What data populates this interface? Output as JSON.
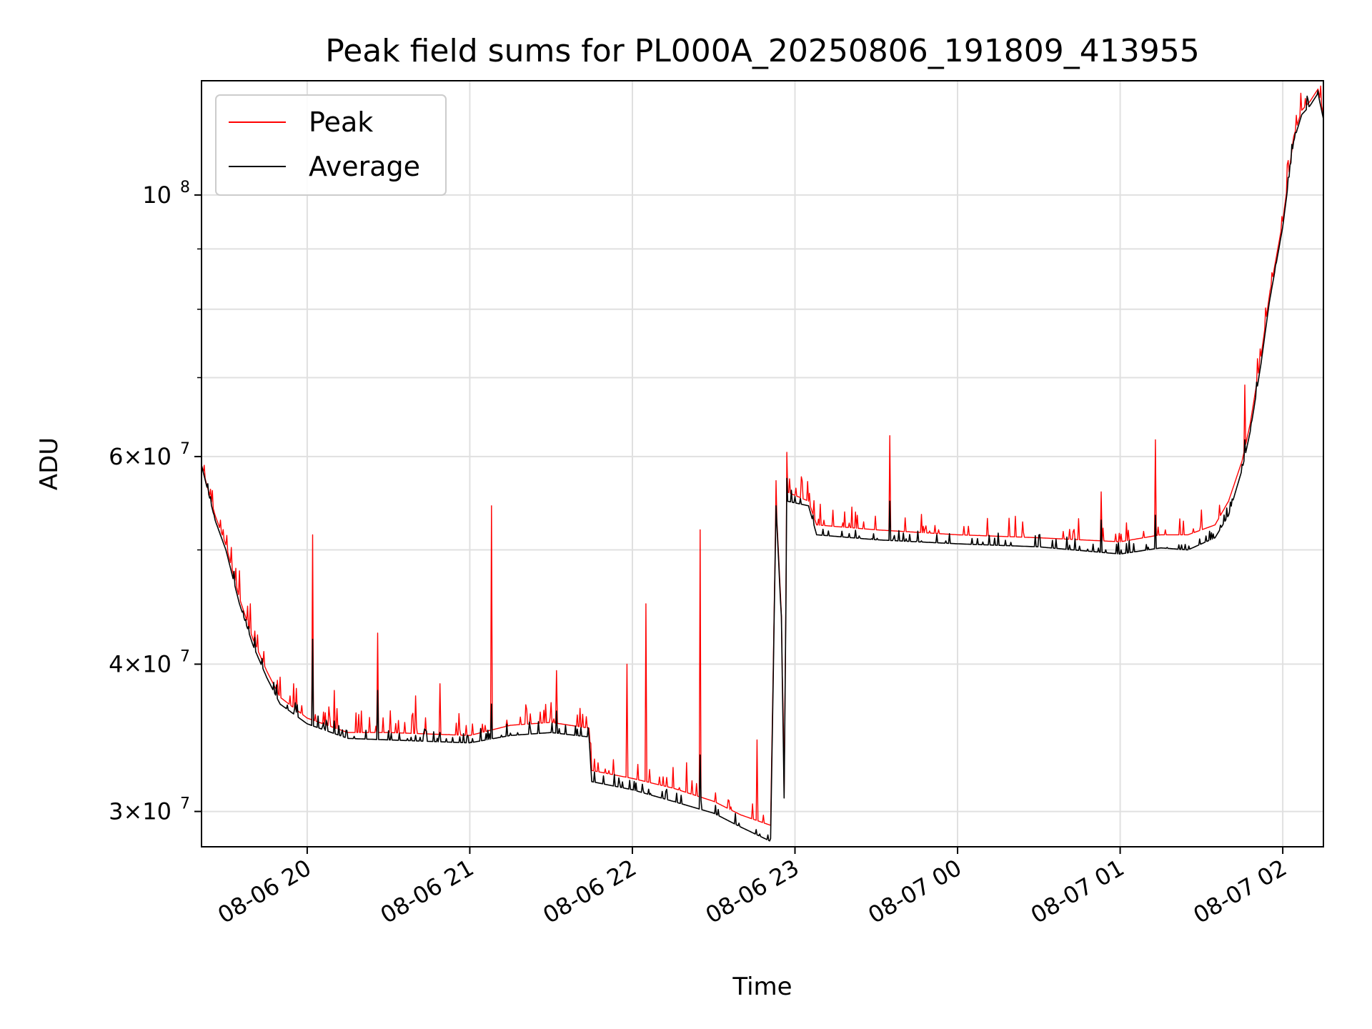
{
  "chart_data": {
    "type": "line",
    "title": "Peak field sums for PL000A_20250806_191809_413955",
    "xlabel": "Time",
    "ylabel": "ADU",
    "x_axis": {
      "kind": "datetime",
      "range": [
        "2025-08-06T19:21:00",
        "2025-08-07T02:15:00"
      ],
      "ticks": [
        {
          "value": "2025-08-06T20:00:00",
          "label": "08-06 20"
        },
        {
          "value": "2025-08-06T21:00:00",
          "label": "08-06 21"
        },
        {
          "value": "2025-08-06T22:00:00",
          "label": "08-06 22"
        },
        {
          "value": "2025-08-06T23:00:00",
          "label": "08-06 23"
        },
        {
          "value": "2025-08-07T00:00:00",
          "label": "08-07 00"
        },
        {
          "value": "2025-08-07T01:00:00",
          "label": "08-07 01"
        },
        {
          "value": "2025-08-07T02:00:00",
          "label": "08-07 02"
        }
      ],
      "tick_label_rotation_deg": 30
    },
    "y_axis": {
      "scale": "log",
      "range": [
        28000000,
        125000000
      ],
      "ticks": [
        {
          "value": 30000000,
          "base": "3",
          "exp": "7"
        },
        {
          "value": 40000000,
          "base": "4",
          "exp": "7"
        },
        {
          "value": 60000000,
          "base": "6",
          "exp": "7"
        },
        {
          "value": 100000000,
          "base": "10",
          "exp": "8"
        }
      ],
      "minor_ticks": [
        50000000,
        70000000,
        80000000,
        90000000
      ]
    },
    "grid": true,
    "legend": {
      "position": "top-left"
    },
    "colors": {
      "peak": "#ff0000",
      "average": "#000000",
      "grid": "#e0e0e0"
    },
    "series": [
      {
        "name": "Peak",
        "color": "#ff0000",
        "baseline": [
          [
            "2025-08-06T19:21:00",
            59000000
          ],
          [
            "2025-08-06T19:26:00",
            53500000
          ],
          [
            "2025-08-06T19:30:00",
            50500000
          ],
          [
            "2025-08-06T19:35:00",
            45500000
          ],
          [
            "2025-08-06T19:40:00",
            42000000
          ],
          [
            "2025-08-06T19:45:00",
            39500000
          ],
          [
            "2025-08-06T19:50:00",
            37500000
          ],
          [
            "2025-08-06T20:00:00",
            36000000
          ],
          [
            "2025-08-06T20:15:00",
            35000000
          ],
          [
            "2025-08-06T20:30:00",
            35000000
          ],
          [
            "2025-08-06T21:00:00",
            34800000
          ],
          [
            "2025-08-06T21:15:00",
            35500000
          ],
          [
            "2025-08-06T21:30:00",
            35700000
          ],
          [
            "2025-08-06T21:44:00",
            35300000
          ],
          [
            "2025-08-06T21:45:00",
            32500000
          ],
          [
            "2025-08-06T22:00:00",
            32000000
          ],
          [
            "2025-08-06T22:15:00",
            31400000
          ],
          [
            "2025-08-06T22:30:00",
            30600000
          ],
          [
            "2025-08-06T22:40:00",
            29800000
          ],
          [
            "2025-08-06T22:51:00",
            29200000
          ],
          [
            "2025-08-06T22:53:00",
            55000000
          ],
          [
            "2025-08-06T22:55:00",
            44000000
          ],
          [
            "2025-08-06T22:56:00",
            31000000
          ],
          [
            "2025-08-06T22:57:00",
            56000000
          ],
          [
            "2025-08-06T23:05:00",
            55000000
          ],
          [
            "2025-08-06T23:08:00",
            52500000
          ],
          [
            "2025-08-06T23:30:00",
            52000000
          ],
          [
            "2025-08-07T00:00:00",
            51500000
          ],
          [
            "2025-08-07T00:30:00",
            51200000
          ],
          [
            "2025-08-07T01:00:00",
            50800000
          ],
          [
            "2025-08-07T01:15:00",
            51500000
          ],
          [
            "2025-08-07T01:25:00",
            51500000
          ],
          [
            "2025-08-07T01:35:00",
            52500000
          ],
          [
            "2025-08-07T01:40:00",
            55000000
          ],
          [
            "2025-08-07T01:45:00",
            59500000
          ],
          [
            "2025-08-07T01:48:00",
            64000000
          ],
          [
            "2025-08-07T01:52:00",
            73000000
          ],
          [
            "2025-08-07T01:55:00",
            82000000
          ],
          [
            "2025-08-07T02:00:00",
            95000000
          ],
          [
            "2025-08-07T02:04:00",
            112000000
          ],
          [
            "2025-08-07T02:07:00",
            118000000
          ],
          [
            "2025-08-07T02:10:00",
            120000000
          ],
          [
            "2025-08-07T02:13:00",
            123000000
          ],
          [
            "2025-08-07T02:15:00",
            117000000
          ]
        ],
        "spikes": [
          [
            "2025-08-06T19:28:00",
            53000000
          ],
          [
            "2025-08-06T19:35:00",
            48000000
          ],
          [
            "2025-08-06T19:39:00",
            45000000
          ],
          [
            "2025-08-06T19:44:00",
            41000000
          ],
          [
            "2025-08-06T19:50:00",
            39000000
          ],
          [
            "2025-08-06T19:55:00",
            38500000
          ],
          [
            "2025-08-06T20:02:00",
            51500000
          ],
          [
            "2025-08-06T20:10:00",
            38000000
          ],
          [
            "2025-08-06T20:20:00",
            36500000
          ],
          [
            "2025-08-06T20:26:00",
            42500000
          ],
          [
            "2025-08-06T20:40:00",
            37600000
          ],
          [
            "2025-08-06T20:49:00",
            38500000
          ],
          [
            "2025-08-06T21:08:00",
            54500000
          ],
          [
            "2025-08-06T21:32:00",
            39500000
          ],
          [
            "2025-08-06T21:58:00",
            40000000
          ],
          [
            "2025-08-06T22:05:00",
            45000000
          ],
          [
            "2025-08-06T22:20:00",
            33000000
          ],
          [
            "2025-08-06T22:25:00",
            52000000
          ],
          [
            "2025-08-06T22:46:00",
            34500000
          ],
          [
            "2025-08-06T22:57:00",
            60500000
          ],
          [
            "2025-08-06T23:35:00",
            62500000
          ],
          [
            "2025-08-07T00:53:00",
            56000000
          ],
          [
            "2025-08-07T01:13:00",
            62000000
          ],
          [
            "2025-08-07T01:46:00",
            69000000
          ]
        ]
      },
      {
        "name": "Average",
        "color": "#000000",
        "baseline": [
          [
            "2025-08-06T19:21:00",
            59000000
          ],
          [
            "2025-08-06T19:26:00",
            53000000
          ],
          [
            "2025-08-06T19:30:00",
            50000000
          ],
          [
            "2025-08-06T19:35:00",
            45000000
          ],
          [
            "2025-08-06T19:40:00",
            41500000
          ],
          [
            "2025-08-06T19:45:00",
            39000000
          ],
          [
            "2025-08-06T19:50:00",
            37000000
          ],
          [
            "2025-08-06T20:00:00",
            35600000
          ],
          [
            "2025-08-06T20:15:00",
            34600000
          ],
          [
            "2025-08-06T20:30:00",
            34500000
          ],
          [
            "2025-08-06T21:00:00",
            34300000
          ],
          [
            "2025-08-06T21:15:00",
            34800000
          ],
          [
            "2025-08-06T21:30:00",
            35000000
          ],
          [
            "2025-08-06T21:44:00",
            34700000
          ],
          [
            "2025-08-06T21:45:00",
            31800000
          ],
          [
            "2025-08-06T22:00:00",
            31300000
          ],
          [
            "2025-08-06T22:15:00",
            30600000
          ],
          [
            "2025-08-06T22:30:00",
            29900000
          ],
          [
            "2025-08-06T22:40:00",
            29100000
          ],
          [
            "2025-08-06T22:51:00",
            28300000
          ],
          [
            "2025-08-06T22:53:00",
            54500000
          ],
          [
            "2025-08-06T22:55:00",
            43500000
          ],
          [
            "2025-08-06T22:56:00",
            30800000
          ],
          [
            "2025-08-06T22:57:00",
            55000000
          ],
          [
            "2025-08-06T23:05:00",
            54500000
          ],
          [
            "2025-08-06T23:08:00",
            51500000
          ],
          [
            "2025-08-06T23:30:00",
            51000000
          ],
          [
            "2025-08-07T00:00:00",
            50600000
          ],
          [
            "2025-08-07T00:30:00",
            50300000
          ],
          [
            "2025-08-07T01:00:00",
            49600000
          ],
          [
            "2025-08-07T01:15:00",
            50200000
          ],
          [
            "2025-08-07T01:25:00",
            50000000
          ],
          [
            "2025-08-07T01:35:00",
            51200000
          ],
          [
            "2025-08-07T01:40:00",
            53500000
          ],
          [
            "2025-08-07T01:45:00",
            58500000
          ],
          [
            "2025-08-07T01:48:00",
            63000000
          ],
          [
            "2025-08-07T01:52:00",
            72000000
          ],
          [
            "2025-08-07T01:55:00",
            81000000
          ],
          [
            "2025-08-07T02:00:00",
            94000000
          ],
          [
            "2025-08-07T02:04:00",
            111000000
          ],
          [
            "2025-08-07T02:07:00",
            117000000
          ],
          [
            "2025-08-07T02:10:00",
            119000000
          ],
          [
            "2025-08-07T02:13:00",
            122000000
          ],
          [
            "2025-08-07T02:15:00",
            116000000
          ]
        ],
        "spikes": [
          [
            "2025-08-06T20:02:00",
            42000000
          ],
          [
            "2025-08-06T20:26:00",
            38000000
          ],
          [
            "2025-08-06T21:08:00",
            37000000
          ],
          [
            "2025-08-06T21:32:00",
            36500000
          ],
          [
            "2025-08-06T22:25:00",
            33500000
          ],
          [
            "2025-08-06T22:57:00",
            57500000
          ],
          [
            "2025-08-06T23:35:00",
            55000000
          ],
          [
            "2025-08-07T00:53:00",
            53000000
          ],
          [
            "2025-08-07T01:13:00",
            53500000
          ],
          [
            "2025-08-07T01:46:00",
            62000000
          ]
        ]
      }
    ]
  }
}
